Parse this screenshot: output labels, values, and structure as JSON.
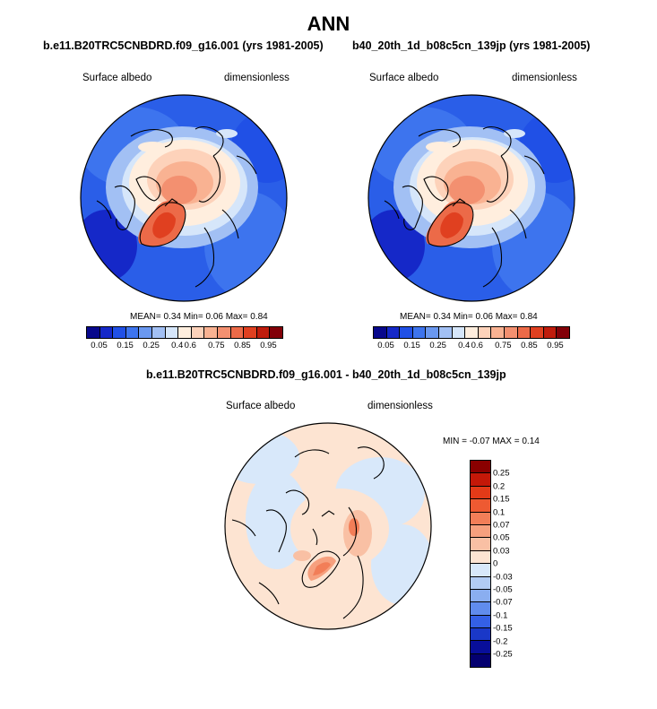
{
  "page": {
    "title": "ANN"
  },
  "panels": [
    {
      "case_title": "b.e11.B20TRC5CNBDRD.f09_g16.001 (yrs 1981-2005)",
      "variable": "Surface albedo",
      "units": "dimensionless",
      "stats": "MEAN=   0.34  Min=   0.06  Max=   0.84"
    },
    {
      "case_title": "b40_20th_1d_b08c5cn_139jp (yrs 1981-2005)",
      "variable": "Surface albedo",
      "units": "dimensionless",
      "stats": "MEAN=   0.34  Min=   0.06  Max=   0.84"
    }
  ],
  "colorbar": {
    "ticks": [
      "0.05",
      "0.15",
      "0.25",
      "0.4",
      "0.6",
      "0.75",
      "0.85",
      "0.95"
    ],
    "colors": [
      "#08088c",
      "#1528c8",
      "#2050e6",
      "#3d74ee",
      "#6a98f0",
      "#a2c0f4",
      "#d6e6fa",
      "#ffeede",
      "#fdd2ba",
      "#f9b292",
      "#f39070",
      "#ec6a48",
      "#e04020",
      "#bf1c0c",
      "#820008"
    ]
  },
  "difference": {
    "title": "b.e11.B20TRC5CNBDRD.f09_g16.001 - b40_20th_1d_b08c5cn_139jp",
    "variable": "Surface albedo",
    "units": "dimensionless",
    "stats": "MIN =  -0.07 MAX =   0.14",
    "ticks": [
      "0.25",
      "0.2",
      "0.15",
      "0.1",
      "0.07",
      "0.05",
      "0.03",
      "0",
      "-0.03",
      "-0.05",
      "-0.07",
      "-0.1",
      "-0.15",
      "-0.2",
      "-0.25"
    ],
    "colors": [
      "#8a0000",
      "#c41808",
      "#e33a18",
      "#ee5a32",
      "#f27e58",
      "#f6a07e",
      "#f9c0a4",
      "#fde4d2",
      "#d8e8fa",
      "#b2ccf4",
      "#8aaef0",
      "#608ced",
      "#3460e6",
      "#1a38c8",
      "#080e9a",
      "#040070"
    ]
  }
}
